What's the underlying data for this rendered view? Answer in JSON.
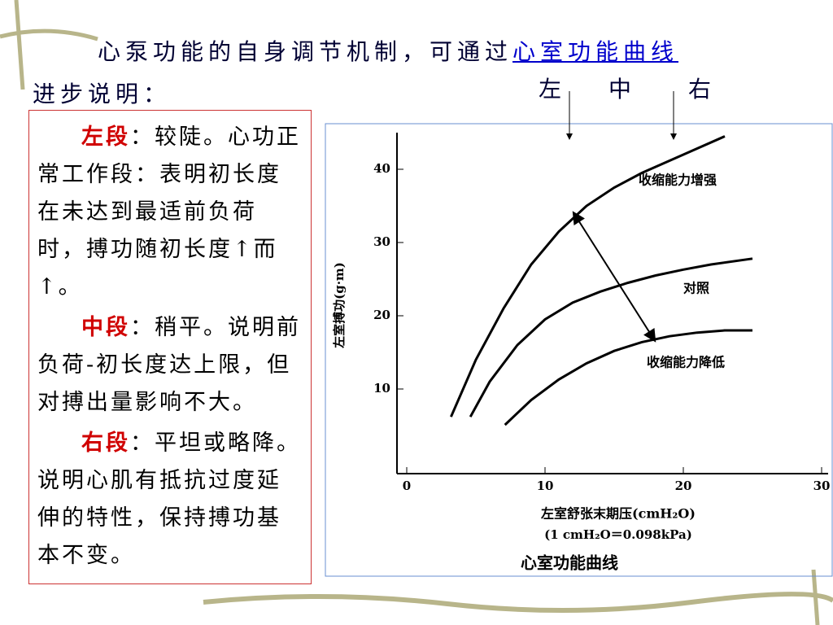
{
  "header": {
    "title_prefix": "心泵功能的自身调节机制，可通过",
    "title_link": "心室功能曲线",
    "title_line2": "进步说明：",
    "markers": [
      "左",
      "中",
      "右"
    ]
  },
  "text_box": {
    "paragraphs": [
      {
        "label": "左段",
        "text": "：较陡。心功正常工作段：表明初长度在未达到最适前负荷时，搏功随初长度↑而↑。"
      },
      {
        "label": "中段",
        "text": "：稍平。说明前负荷-初长度达上限，但对搏出量影响不大。"
      },
      {
        "label": "右段",
        "text": "：平坦或略降。说明心肌有抵抗过度延伸的特性，保持搏功基本不变。"
      }
    ]
  },
  "chart_data": {
    "type": "line",
    "caption": "心室功能曲线",
    "x_label": "左室舒张末期压(cmH₂O)",
    "x_note": "(1 cmH₂O＝0.098kPa)",
    "y_label": "左室搏功(g·m)",
    "xlim": [
      0,
      30
    ],
    "ylim": [
      0,
      45
    ],
    "xticks": [
      0,
      10,
      20,
      30
    ],
    "yticks": [
      10,
      20,
      30,
      40
    ],
    "series": [
      {
        "name": "收缩能力增强",
        "color": "#000000",
        "x": [
          3.2,
          5,
          7,
          9,
          11,
          13,
          15,
          17,
          20,
          23
        ],
        "values": [
          6.2,
          14,
          21,
          27,
          31.5,
          35,
          37.5,
          39.5,
          42,
          44.5
        ]
      },
      {
        "name": "对照",
        "color": "#000000",
        "x": [
          4.6,
          6,
          8,
          10,
          12,
          14,
          16,
          18,
          20,
          22,
          25
        ],
        "values": [
          6.2,
          11,
          16,
          19.5,
          21.8,
          23.3,
          24.5,
          25.5,
          26.3,
          27,
          27.8
        ]
      },
      {
        "name": "收缩能力降低",
        "color": "#000000",
        "x": [
          7.1,
          9,
          11,
          13,
          15,
          17,
          19,
          21,
          23,
          25
        ],
        "values": [
          5.1,
          8.5,
          11.3,
          13.5,
          15.2,
          16.4,
          17.2,
          17.7,
          18,
          18
        ]
      }
    ]
  }
}
